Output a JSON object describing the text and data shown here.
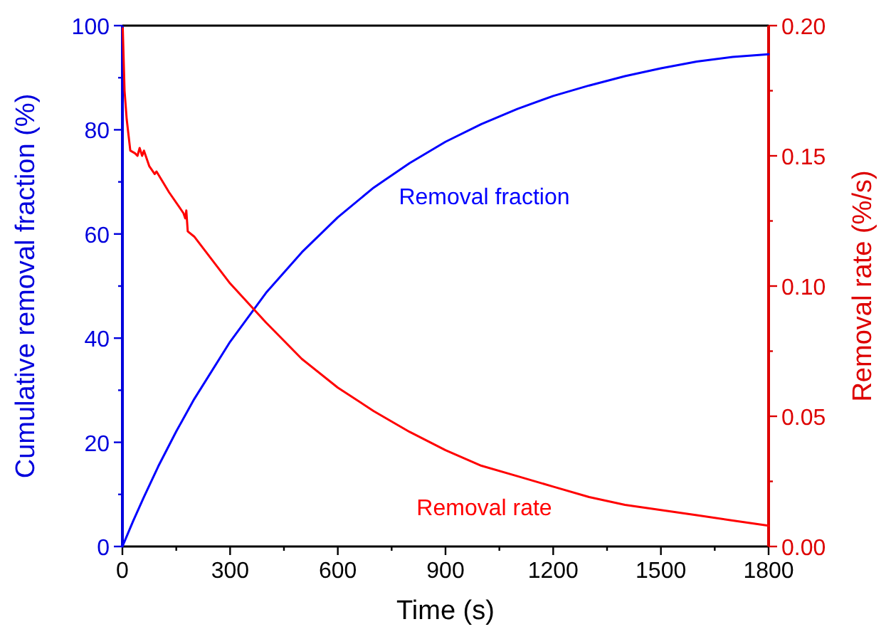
{
  "chart_data": {
    "type": "line",
    "xlabel": "Time (s)",
    "ylabel": "Cumulative removal fraction (%)",
    "y2label": "Removal rate (%/s)",
    "xlim": [
      0,
      1800
    ],
    "xticks": [
      0,
      {
        "value": 150,
        "label": null
      },
      300,
      {
        "value": 450,
        "label": null
      },
      600,
      {
        "value": 750,
        "label": null
      },
      900,
      {
        "value": 1050,
        "label": null
      },
      1200,
      {
        "value": 1350,
        "label": null
      },
      1500,
      {
        "value": 1650,
        "label": null
      },
      1800
    ],
    "ylim": [
      0,
      100
    ],
    "yticks": [
      0,
      {
        "value": 10,
        "label": null
      },
      20,
      {
        "value": 30,
        "label": null
      },
      40,
      {
        "value": 50,
        "label": null
      },
      60,
      {
        "value": 70,
        "label": null
      },
      80,
      {
        "value": 90,
        "label": null
      },
      100
    ],
    "y2lim": [
      0,
      0.2
    ],
    "y2ticks": [
      {
        "value": 0,
        "label": "0.00"
      },
      {
        "value": 0.025,
        "label": null
      },
      {
        "value": 0.05,
        "label": "0.05"
      },
      {
        "value": 0.075,
        "label": null
      },
      {
        "value": 0.1,
        "label": "0.10"
      },
      {
        "value": 0.125,
        "label": null
      },
      {
        "value": 0.15,
        "label": "0.15"
      },
      {
        "value": 0.175,
        "label": null
      },
      {
        "value": 0.2,
        "label": "0.20"
      }
    ],
    "line_style": "solid",
    "marker": "none",
    "series": [
      {
        "name": "Removal fraction",
        "color": "#0000ff",
        "x": [
          0,
          30,
          60,
          100,
          150,
          200,
          300,
          400,
          500,
          600,
          700,
          800,
          900,
          1000,
          1100,
          1200,
          1300,
          1400,
          1500,
          1600,
          1700,
          1800
        ],
        "values": [
          0,
          4.9,
          9.5,
          15.4,
          22.1,
          28.3,
          39.3,
          48.7,
          56.5,
          63.2,
          68.9,
          73.6,
          77.7,
          81.1,
          84.0,
          86.5,
          88.5,
          90.3,
          91.8,
          93.1,
          94.0,
          94.5
        ]
      },
      {
        "name": "Removal rate",
        "color": "#ff0000",
        "axis": "y2",
        "x": [
          1,
          6,
          12,
          22,
          35,
          42,
          48,
          55,
          60,
          75,
          90,
          95,
          130,
          170,
          175,
          178,
          182,
          200,
          300,
          400,
          500,
          600,
          700,
          800,
          900,
          1000,
          1100,
          1200,
          1300,
          1400,
          1500,
          1600,
          1700,
          1800
        ],
        "values": [
          0.199,
          0.175,
          0.164,
          0.152,
          0.151,
          0.15,
          0.153,
          0.15,
          0.152,
          0.146,
          0.143,
          0.144,
          0.136,
          0.128,
          0.126,
          0.129,
          0.121,
          0.119,
          0.101,
          0.086,
          0.072,
          0.061,
          0.052,
          0.044,
          0.037,
          0.031,
          0.027,
          0.023,
          0.019,
          0.016,
          0.014,
          0.012,
          0.01,
          0.008
        ]
      }
    ]
  }
}
